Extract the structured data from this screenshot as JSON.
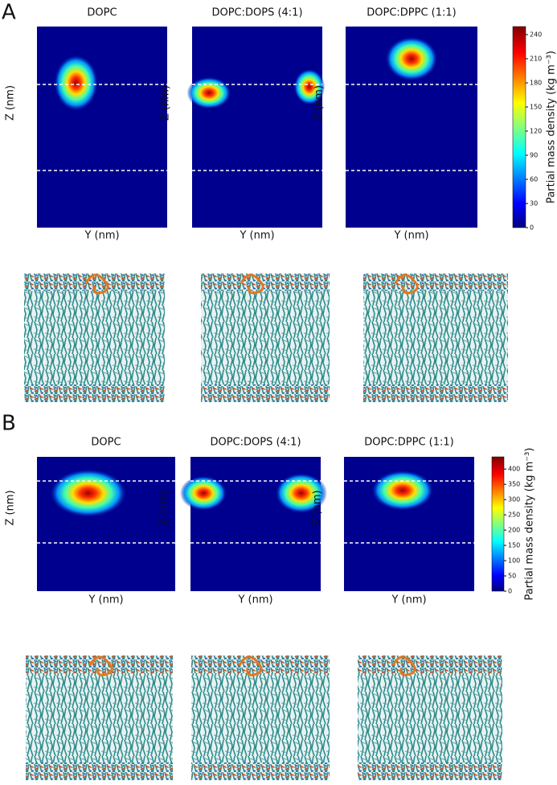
{
  "panels": [
    {
      "label": "A",
      "plots": [
        {
          "title": "DOPC"
        },
        {
          "title": "DOPC:DOPS (4:1)"
        },
        {
          "title": "DOPC:DPPC (1:1)"
        }
      ],
      "x_label": "Y (nm)",
      "y_label": "Z (nm)",
      "colorbar": {
        "label": "Partial mass density (kg m⁻³)",
        "lim": [
          0,
          250
        ],
        "ticks": [
          0,
          30,
          60,
          90,
          120,
          150,
          180,
          210,
          240
        ]
      }
    },
    {
      "label": "B",
      "plots": [
        {
          "title": "DOPC"
        },
        {
          "title": "DOPC:DOPS (4:1)"
        },
        {
          "title": "DOPC:DPPC (1:1)"
        }
      ],
      "x_label": "Y (nm)",
      "y_label": "Z (nm)",
      "colorbar": {
        "label": "Partial mass density (kg m⁻³)",
        "lim": [
          0,
          440
        ],
        "ticks": [
          0,
          50,
          100,
          150,
          200,
          250,
          300,
          350,
          400
        ]
      }
    }
  ]
}
